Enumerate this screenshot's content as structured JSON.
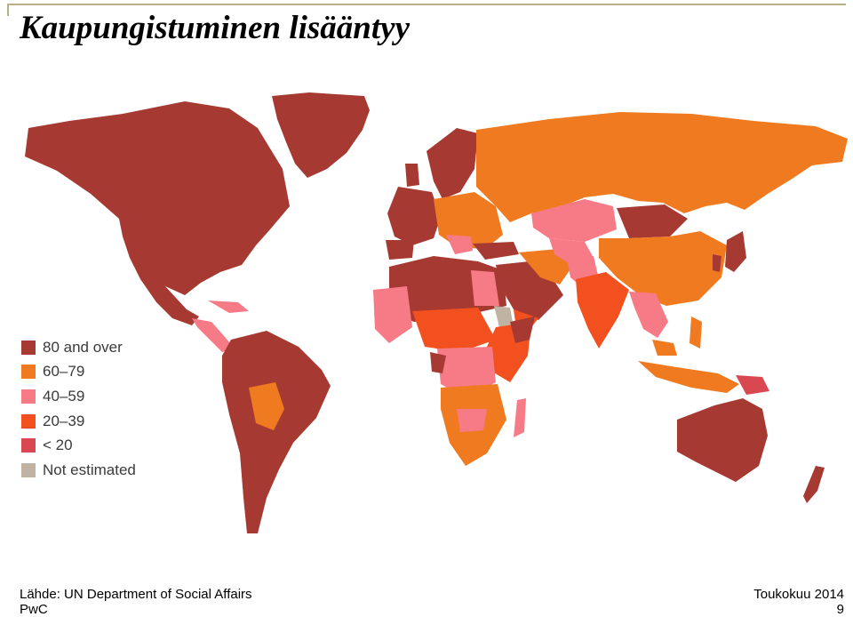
{
  "slide": {
    "title": "Kaupungistuminen lisääntyy",
    "source": "Lähde: UN Department of Social Affairs",
    "organization": "PwC",
    "date": "Toukokuu 2014",
    "page_number": "9"
  },
  "legend": {
    "items": [
      {
        "label": "80 and over",
        "color": "#a63a32"
      },
      {
        "label": "60–79",
        "color": "#f07a20"
      },
      {
        "label": "40–59",
        "color": "#f77b87"
      },
      {
        "label": "20–39",
        "color": "#f2501e"
      },
      {
        "label": "< 20",
        "color": "#d94850"
      },
      {
        "label": "Not estimated",
        "color": "#c1b3a3"
      }
    ]
  },
  "colors": {
    "rule": "#b9b08a",
    "high": "#a63a32",
    "upper_mid": "#f07a20",
    "mid": "#f77b87",
    "low": "#f2501e",
    "lowest": "#d94850",
    "not_estimated": "#c1b3a3"
  }
}
